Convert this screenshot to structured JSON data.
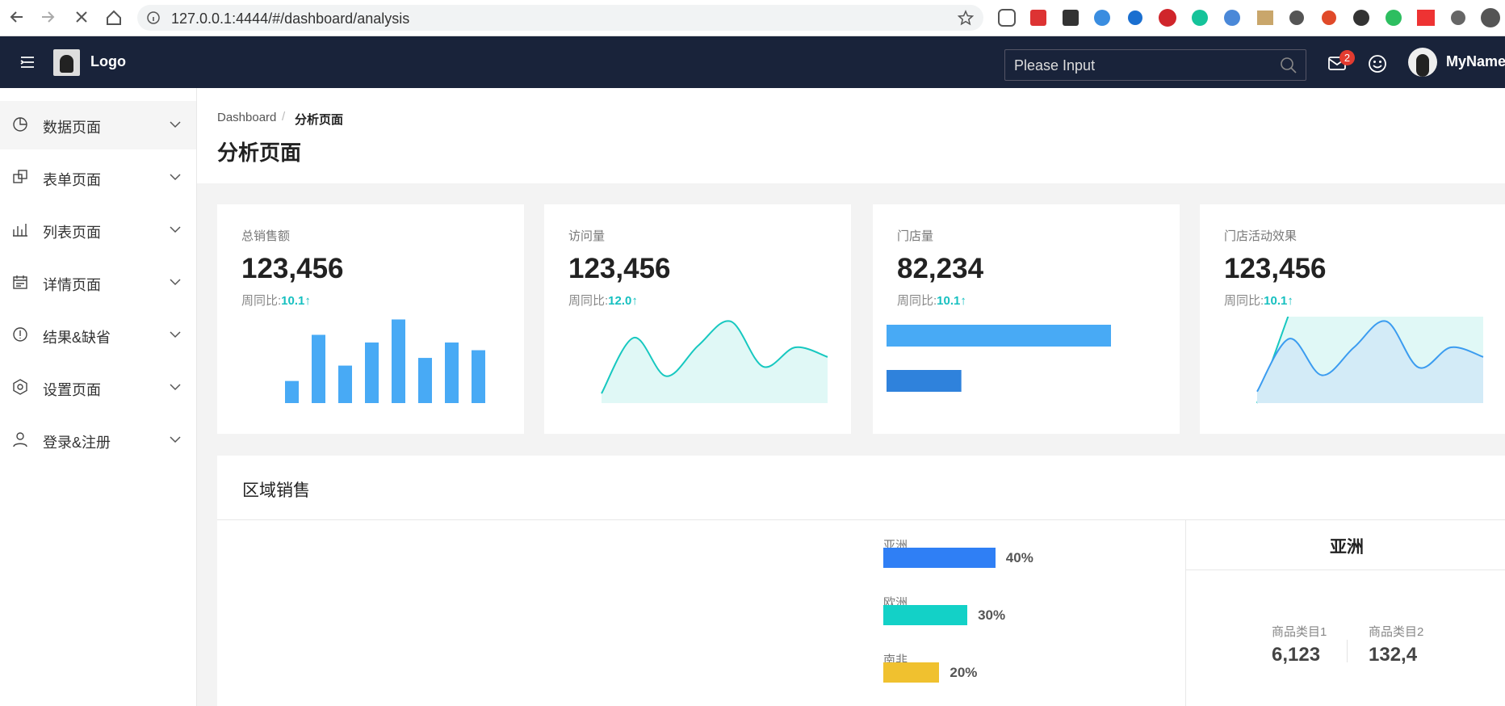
{
  "browser": {
    "url": "127.0.0.1:4444/#/dashboard/analysis"
  },
  "header": {
    "logo": "Logo",
    "search_placeholder": "Please Input",
    "mail_badge": 2,
    "user_name": "MyName"
  },
  "sidebar": {
    "items": [
      "数据页面",
      "表单页面",
      "列表页面",
      "详情页面",
      "结果&缺省",
      "设置页面",
      "登录&注册"
    ]
  },
  "page": {
    "breadcrumb": [
      "Dashboard",
      "分析页面"
    ],
    "title": "分析页面"
  },
  "cards": [
    {
      "label": "总销售额",
      "value": "123,456",
      "compare_label": "周同比:",
      "compare_value": "10.1↑",
      "chart": {
        "type": "bar",
        "values": [
          23,
          71,
          39,
          63,
          87,
          47,
          63,
          55
        ]
      }
    },
    {
      "label": "访问量",
      "value": "123,456",
      "compare_label": "周同比:",
      "compare_value": "12.0↑",
      "chart": {
        "type": "area",
        "values": [
          10,
          68,
          28,
          60,
          85,
          38,
          58,
          48
        ]
      }
    },
    {
      "label": "门店量",
      "value": "82,234",
      "compare_label": "周同比:",
      "compare_value": "10.1↑",
      "chart": {
        "type": "hbar",
        "values": [
          75,
          25
        ]
      }
    },
    {
      "label": "门店活动效果",
      "value": "123,456",
      "compare_label": "周同比:",
      "compare_value": "10.1↑",
      "chart": {
        "type": "multi-area",
        "series": [
          {
            "color": "#17c8c0",
            "values": [
              0,
              94,
              94,
              94,
              94,
              94,
              94,
              94
            ]
          },
          {
            "color": "#3b9cf0",
            "values": [
              12,
              67,
              29,
              58,
              85,
              37,
              58,
              48
            ]
          }
        ]
      }
    }
  ],
  "region_sales": {
    "title": "区域销售",
    "items": [
      {
        "name": "亚洲",
        "value": 40,
        "value_label": "40%",
        "color": "#2f7ff5"
      },
      {
        "name": "欧洲",
        "value": 30,
        "value_label": "30%",
        "color": "#13d1c7"
      },
      {
        "name": "南非",
        "value": 20,
        "value_label": "20%",
        "color": "#f0c12f"
      }
    ],
    "detail": {
      "title": "亚洲",
      "stats": [
        {
          "label": "商品类目1",
          "value": "6,123"
        },
        {
          "label": "商品类目2",
          "value": "132,4"
        }
      ]
    }
  }
}
